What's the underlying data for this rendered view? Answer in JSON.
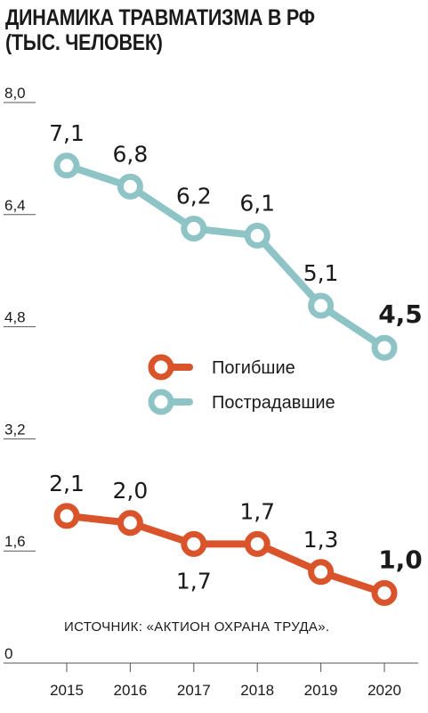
{
  "title_line1": "ДИНАМИКА ТРАВМАТИЗМА В РФ",
  "title_line2": "(ТЫС. ЧЕЛОВЕК)",
  "source": "ИСТОЧНИК: «АКТИОН ОХРАНА ТРУДА».",
  "chart_data": {
    "type": "line",
    "title": "ДИНАМИКА ТРАВМАТИЗМА В РФ (ТЫС. ЧЕЛОВЕК)",
    "categories": [
      "2015",
      "2016",
      "2017",
      "2018",
      "2019",
      "2020"
    ],
    "y_ticks": [
      "0",
      "1,6",
      "3,2",
      "4,8",
      "6,4",
      "8,0"
    ],
    "ylim": [
      0,
      8.0
    ],
    "grid": false,
    "legend_position": "middle",
    "series": [
      {
        "name": "Погибшие",
        "color": "#d9532b",
        "values": [
          2.1,
          2.0,
          1.7,
          1.7,
          1.3,
          1.0
        ],
        "labels": [
          "2,1",
          "2,0",
          "1,7",
          "1,7",
          "1,3",
          "1,0"
        ],
        "label_positions": [
          "above",
          "above",
          "below",
          "above",
          "above",
          "above"
        ]
      },
      {
        "name": "Пострадавшие",
        "color": "#8fc4c6",
        "values": [
          7.1,
          6.8,
          6.2,
          6.1,
          5.1,
          4.5
        ],
        "labels": [
          "7,1",
          "6,8",
          "6,2",
          "6,1",
          "5,1",
          "4,5"
        ],
        "label_positions": [
          "above",
          "above",
          "above",
          "above",
          "above",
          "above"
        ]
      }
    ]
  }
}
